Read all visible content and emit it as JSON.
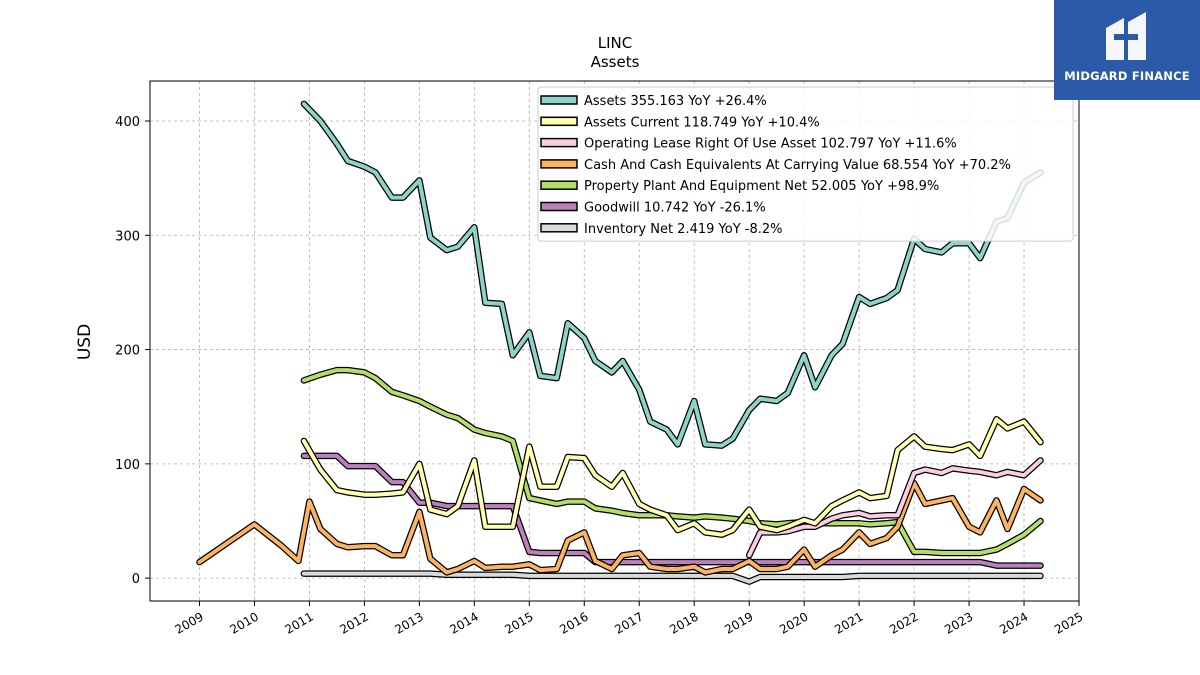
{
  "chart_data": {
    "type": "line",
    "title": "LINC",
    "subtitle": "Assets",
    "ylabel": "USD",
    "xlim": [
      2008.1,
      2025.0
    ],
    "ylim": [
      -20,
      435
    ],
    "yticks": [
      0,
      100,
      200,
      300,
      400
    ],
    "xticks": [
      "2009",
      "2010",
      "2011",
      "2012",
      "2013",
      "2014",
      "2015",
      "2016",
      "2017",
      "2018",
      "2019",
      "2020",
      "2021",
      "2022",
      "2023",
      "2024",
      "2025"
    ],
    "grid": true,
    "legend_position": "top-right",
    "x": [
      2010.9,
      2011.2,
      2011.5,
      2011.7,
      2012.0,
      2012.2,
      2012.5,
      2012.7,
      2013.0,
      2013.2,
      2013.5,
      2013.7,
      2014.0,
      2014.2,
      2014.5,
      2014.7,
      2015.0,
      2015.2,
      2015.5,
      2015.7,
      2016.0,
      2016.2,
      2016.5,
      2016.7,
      2017.0,
      2017.2,
      2017.5,
      2017.7,
      2018.0,
      2018.2,
      2018.5,
      2018.7,
      2019.0,
      2019.2,
      2019.5,
      2019.7,
      2020.0,
      2020.2,
      2020.5,
      2020.7,
      2021.0,
      2021.2,
      2021.5,
      2021.7,
      2022.0,
      2022.2,
      2022.5,
      2022.7,
      2023.0,
      2023.2,
      2023.5,
      2023.7,
      2024.0,
      2024.3
    ],
    "series": [
      {
        "name": "Assets",
        "label": "Assets  355.163 YoY +26.4%",
        "color": "#8dd3c7",
        "values": [
          415,
          400,
          380,
          365,
          360,
          355,
          333,
          333,
          348,
          298,
          287,
          290,
          307,
          241,
          240,
          195,
          215,
          177,
          175,
          223,
          210,
          190,
          180,
          190,
          165,
          137,
          130,
          117,
          155,
          117,
          116,
          122,
          147,
          157,
          155,
          162,
          195,
          167,
          195,
          205,
          246,
          240,
          245,
          252,
          297,
          288,
          285,
          293,
          293,
          280,
          312,
          315,
          346,
          355
        ]
      },
      {
        "name": "Assets Current",
        "label": "Assets Current  118.749 YoY +10.4%",
        "color": "#ffffb3",
        "values": [
          120,
          95,
          77,
          75,
          73,
          73,
          74,
          75,
          100,
          60,
          56,
          63,
          103,
          45,
          45,
          45,
          115,
          80,
          80,
          106,
          105,
          90,
          80,
          92,
          65,
          60,
          55,
          42,
          48,
          40,
          38,
          42,
          60,
          45,
          42,
          45,
          51,
          48,
          63,
          68,
          75,
          70,
          72,
          112,
          124,
          115,
          113,
          112,
          117,
          107,
          139,
          131,
          137,
          119
        ]
      },
      {
        "name": "Operating Lease Right Of Use Asset",
        "label": "Operating Lease Right Of Use Asset  102.797 YoY +11.6%",
        "color": "#fccde5",
        "x": [
          2019.0,
          2019.2,
          2019.5,
          2019.7,
          2020.0,
          2020.2,
          2020.5,
          2020.7,
          2021.0,
          2021.2,
          2021.5,
          2021.7,
          2022.0,
          2022.2,
          2022.5,
          2022.7,
          2023.0,
          2023.2,
          2023.5,
          2023.7,
          2024.0,
          2024.3
        ],
        "values": [
          20,
          40,
          40,
          41,
          45,
          45,
          52,
          55,
          57,
          54,
          55,
          55,
          92,
          95,
          92,
          96,
          94,
          93,
          90,
          93,
          90,
          103
        ]
      },
      {
        "name": "Cash And Cash Equivalents At Carrying Value",
        "label": "Cash And Cash Equivalents At Carrying Value  68.554 YoY +70.2%",
        "color": "#fdb462",
        "x": [
          2009.0,
          2010.0,
          2010.5,
          2010.8,
          2011.0,
          2011.2,
          2011.5,
          2011.7,
          2012.0,
          2012.2,
          2012.5,
          2012.7,
          2013.0,
          2013.2,
          2013.5,
          2013.7,
          2014.0,
          2014.2,
          2014.5,
          2014.7,
          2015.0,
          2015.2,
          2015.5,
          2015.7,
          2016.0,
          2016.2,
          2016.5,
          2016.7,
          2017.0,
          2017.2,
          2017.5,
          2017.7,
          2018.0,
          2018.2,
          2018.5,
          2018.7,
          2019.0,
          2019.2,
          2019.5,
          2019.7,
          2020.0,
          2020.2,
          2020.5,
          2020.7,
          2021.0,
          2021.2,
          2021.5,
          2021.7,
          2022.0,
          2022.2,
          2022.5,
          2022.7,
          2023.0,
          2023.2,
          2023.5,
          2023.7,
          2024.0,
          2024.3
        ],
        "values": [
          14,
          47,
          28,
          15,
          67,
          43,
          30,
          27,
          28,
          28,
          20,
          20,
          58,
          17,
          5,
          8,
          15,
          9,
          10,
          10,
          12,
          7,
          8,
          33,
          40,
          15,
          8,
          20,
          22,
          10,
          8,
          8,
          10,
          5,
          8,
          8,
          15,
          8,
          8,
          10,
          25,
          10,
          20,
          25,
          40,
          30,
          35,
          45,
          83,
          65,
          68,
          70,
          45,
          40,
          68,
          43,
          78,
          68
        ]
      },
      {
        "name": "Property Plant And Equipment Net",
        "label": "Property Plant And Equipment Net  52.005 YoY +98.9%",
        "color": "#b3de69",
        "values": [
          173,
          178,
          182,
          182,
          180,
          175,
          163,
          160,
          155,
          150,
          143,
          140,
          130,
          127,
          124,
          120,
          70,
          68,
          65,
          67,
          67,
          61,
          59,
          57,
          55,
          55,
          55,
          54,
          53,
          54,
          53,
          52,
          50,
          48,
          47,
          48,
          49,
          48,
          48,
          48,
          48,
          47,
          48,
          49,
          23,
          23,
          22,
          22,
          22,
          22,
          25,
          30,
          38,
          50
        ]
      },
      {
        "name": "Goodwill",
        "label": "Goodwill  10.742 YoY -26.1%",
        "color": "#bc80bd",
        "values": [
          107,
          107,
          107,
          98,
          98,
          98,
          84,
          84,
          66,
          66,
          63,
          63,
          63,
          63,
          63,
          63,
          23,
          22,
          22,
          22,
          22,
          14,
          14,
          14,
          14,
          14,
          14,
          14,
          14,
          14,
          14,
          14,
          14,
          14,
          14,
          14,
          14,
          14,
          14,
          14,
          14,
          14,
          14,
          14,
          14,
          14,
          14,
          14,
          14,
          14,
          11,
          11,
          11,
          11
        ]
      },
      {
        "name": "Inventory Net",
        "label": "Inventory Net  2.419 YoY -8.2%",
        "color": "#d9d9d9",
        "values": [
          4,
          4,
          4,
          4,
          4,
          4,
          4,
          4,
          4,
          4,
          3,
          3,
          3,
          3,
          3,
          3,
          2,
          2,
          2,
          2,
          2,
          2,
          2,
          2,
          2,
          2,
          2,
          2,
          2,
          2,
          2,
          2,
          -3,
          1,
          1,
          1,
          1,
          1,
          1,
          1,
          2,
          2,
          2,
          2,
          2,
          2,
          2,
          2,
          2,
          2,
          2,
          2,
          2,
          2
        ]
      }
    ]
  },
  "logo": {
    "text": "MIDGARD FINANCE",
    "icon": "midgard-logo-icon"
  }
}
